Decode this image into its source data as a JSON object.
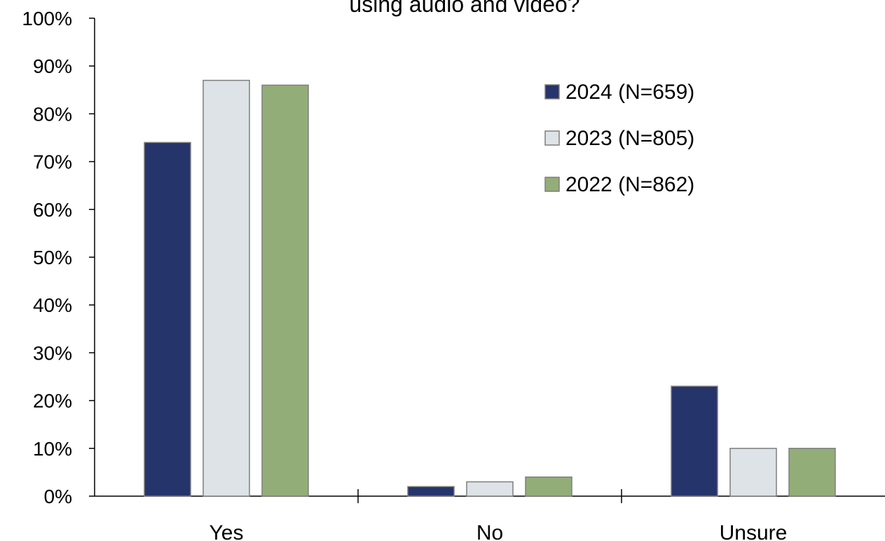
{
  "chart_data": {
    "type": "bar",
    "title": "using audio and video?",
    "categories": [
      "Yes",
      "No",
      "Unsure"
    ],
    "series": [
      {
        "name": "2024 (N=659)",
        "values": [
          74,
          2,
          23
        ],
        "color": "#26346c"
      },
      {
        "name": "2023 (N=805)",
        "values": [
          87,
          3,
          10
        ],
        "color": "#dde3e6"
      },
      {
        "name": "2022 (N=862)",
        "values": [
          86,
          4,
          10
        ],
        "color": "#93ad78"
      }
    ],
    "ylim": [
      0,
      100
    ],
    "yticks": [
      "0%",
      "10%",
      "20%",
      "30%",
      "40%",
      "50%",
      "60%",
      "70%",
      "80%",
      "90%",
      "100%"
    ],
    "xlabel": "",
    "ylabel": "",
    "grid": false,
    "legend_position": "top-right",
    "bar_outline_color": "#7f7f7f"
  }
}
